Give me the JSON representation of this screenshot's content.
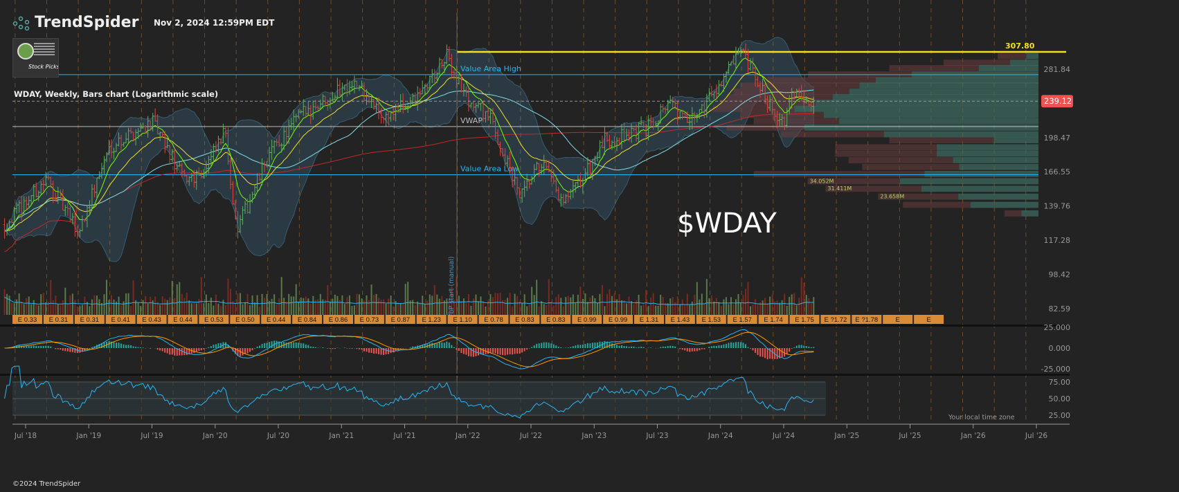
{
  "header": {
    "brand": "TrendSpider",
    "timestamp": "Nov 2, 2024 12:59PM EDT",
    "thumbnail_text": "Stock Picks",
    "symbol_description": "WDAY, Weekly, Bars chart (Logarithmic scale)",
    "big_symbol": "$WDAY"
  },
  "footer": {
    "copyright": "©2024 TrendSpider",
    "timezone_note": "Your local time zone"
  },
  "chart_data": {
    "type": "ohlc-bars",
    "symbol": "WDAY",
    "timeframe": "Weekly",
    "scale": "log",
    "price_axis_ticks": [
      "281.84",
      "198.47",
      "166.55",
      "139.76",
      "117.28",
      "98.42",
      "82.59"
    ],
    "x_ticks": [
      "Jul '18",
      "Jan '19",
      "Jul '19",
      "Jan '20",
      "Jul '20",
      "Jan '21",
      "Jul '21",
      "Jan '22",
      "Jul '22",
      "Jan '23",
      "Jul '23",
      "Jan '24",
      "Jul '24",
      "Jan '25",
      "Jul '25",
      "Jan '26",
      "Jul '26"
    ],
    "approx_close_path": [
      [
        "2018-05",
        127
      ],
      [
        "2018-09",
        160
      ],
      [
        "2018-12",
        122
      ],
      [
        "2019-03",
        190
      ],
      [
        "2019-07",
        215
      ],
      [
        "2019-10",
        160
      ],
      [
        "2019-12",
        168
      ],
      [
        "2020-02",
        205
      ],
      [
        "2020-03",
        122
      ],
      [
        "2020-06",
        180
      ],
      [
        "2020-09",
        222
      ],
      [
        "2021-02",
        265
      ],
      [
        "2021-05",
        220
      ],
      [
        "2021-08",
        240
      ],
      [
        "2021-11",
        300
      ],
      [
        "2022-01",
        240
      ],
      [
        "2022-03",
        222
      ],
      [
        "2022-06",
        145
      ],
      [
        "2022-08",
        175
      ],
      [
        "2022-10",
        140
      ],
      [
        "2022-12",
        162
      ],
      [
        "2023-02",
        195
      ],
      [
        "2023-06",
        208
      ],
      [
        "2023-08",
        240
      ],
      [
        "2023-10",
        212
      ],
      [
        "2024-02",
        285
      ],
      [
        "2024-03",
        305
      ],
      [
        "2024-05",
        250
      ],
      [
        "2024-07",
        212
      ],
      [
        "2024-08",
        252
      ],
      [
        "2024-10",
        239.12
      ]
    ],
    "last_price": "239.12",
    "resistance": {
      "label": "307.80",
      "value": 307.8,
      "color": "#f5e025"
    },
    "levels": [
      {
        "label": "Value Area High",
        "value": 274,
        "color": "#29b6f6"
      },
      {
        "label": "VWAP",
        "value": 210,
        "color": "#bdbdbd"
      },
      {
        "label": "Value Area Low",
        "value": 164,
        "color": "#29b6f6"
      }
    ],
    "vbp_label": "VbP start (manual)",
    "volume_profile": [
      {
        "price": 300,
        "volume": 6,
        "up": 0.3
      },
      {
        "price": 290,
        "volume": 14,
        "up": 0.3
      },
      {
        "price": 282,
        "volume": 22,
        "up": 0.4
      },
      {
        "price": 273,
        "volume": 34,
        "up": 0.55
      },
      {
        "price": 265,
        "volume": 40,
        "up": 0.6
      },
      {
        "price": 258,
        "volume": 44,
        "up": 0.6
      },
      {
        "price": 250,
        "volume": 45,
        "up": 0.62
      },
      {
        "price": 243,
        "volume": 46,
        "up": 0.66
      },
      {
        "price": 236,
        "volume": 47,
        "up": 0.7
      },
      {
        "price": 229,
        "volume": 48,
        "up": 0.75
      },
      {
        "price": 222,
        "volume": 44,
        "up": 0.72
      },
      {
        "price": 215,
        "volume": 42,
        "up": 0.7
      },
      {
        "price": 208,
        "volume": 46,
        "up": 0.75
      },
      {
        "price": 201,
        "volume": 38,
        "up": 0.6
      },
      {
        "price": 195,
        "volume": 22,
        "up": 0.3
      },
      {
        "price": 188,
        "volume": 30,
        "up": 0.5
      },
      {
        "price": 182,
        "volume": 30,
        "up": 0.5
      },
      {
        "price": 176,
        "volume": 28,
        "up": 0.45
      },
      {
        "price": 170,
        "volume": 26,
        "up": 0.45
      },
      {
        "price": 164,
        "volume": 42,
        "up": 0.4
      },
      {
        "price": 158,
        "volume": 34.052,
        "up": 0.6,
        "label": "34.052M"
      },
      {
        "price": 152,
        "volume": 31.411,
        "up": 0.55,
        "label": "31.411M"
      },
      {
        "price": 146,
        "volume": 23.658,
        "up": 0.5,
        "label": "23.658M"
      },
      {
        "price": 140,
        "volume": 20,
        "up": 0.5
      },
      {
        "price": 134,
        "volume": 5,
        "up": 0.5
      }
    ],
    "earnings": [
      "E 0.33",
      "E 0.31",
      "E 0.31",
      "E 0.41",
      "E 0.43",
      "E 0.44",
      "E 0.53",
      "E 0.50",
      "E 0.44",
      "E 0.84",
      "E 0.86",
      "E 0.73",
      "E 0.87",
      "E 1.23",
      "E 1.10",
      "E 0.78",
      "E 0.83",
      "E 0.83",
      "E 0.99",
      "E 0.99",
      "E 1.31",
      "E 1.43",
      "E 1.53",
      "E 1.57",
      "E 1.74",
      "E 1.75",
      "E ?1.72",
      "E ?1.78",
      "E",
      "E"
    ],
    "macd_axis_ticks": [
      "25.000",
      "0.000",
      "-25.000"
    ],
    "rsi_axis_ticks": [
      "75.00",
      "50.00",
      "25.00"
    ],
    "colors": {
      "up": "#4caf50",
      "down": "#e53935",
      "ema_fast": "#76ff03",
      "ema_slow": "#f5e025",
      "sma50": "#80deea",
      "sma200": "#c62828",
      "bands": "#4fa3d1",
      "earnings": "#d98b36",
      "last_price_badge": "#ef5350"
    }
  }
}
